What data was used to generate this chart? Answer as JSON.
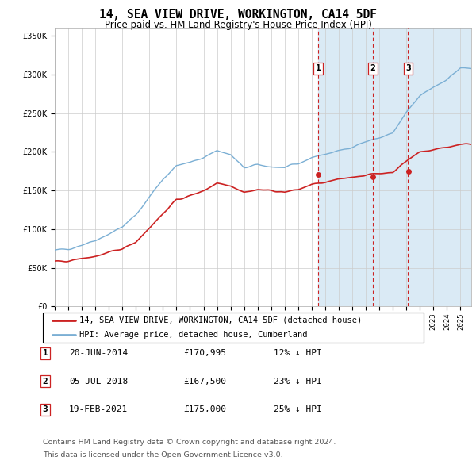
{
  "title": "14, SEA VIEW DRIVE, WORKINGTON, CA14 5DF",
  "subtitle": "Price paid vs. HM Land Registry's House Price Index (HPI)",
  "ylim": [
    0,
    360000
  ],
  "xlim_start": 1995.0,
  "xlim_end": 2025.8,
  "legend_label_red": "14, SEA VIEW DRIVE, WORKINGTON, CA14 5DF (detached house)",
  "legend_label_blue": "HPI: Average price, detached house, Cumberland",
  "footnote_line1": "Contains HM Land Registry data © Crown copyright and database right 2024.",
  "footnote_line2": "This data is licensed under the Open Government Licence v3.0.",
  "sale_points": [
    {
      "label": "1",
      "date_str": "20-JUN-2014",
      "price": 170995,
      "price_str": "£170,995",
      "pct_str": "12% ↓ HPI",
      "x": 2014.47
    },
    {
      "label": "2",
      "date_str": "05-JUL-2018",
      "price": 167500,
      "price_str": "£167,500",
      "pct_str": "23% ↓ HPI",
      "x": 2018.51
    },
    {
      "label": "3",
      "date_str": "19-FEB-2021",
      "price": 175000,
      "price_str": "£175,000",
      "pct_str": "25% ↓ HPI",
      "x": 2021.13
    }
  ],
  "hpi_color": "#7bafd4",
  "price_color": "#cc2222",
  "vline_color": "#cc2222",
  "shade_color": "#daeaf5",
  "background_color": "#ffffff",
  "grid_color": "#cccccc",
  "hpi_anchors_x": [
    1995,
    1996,
    1997,
    1998,
    1999,
    2000,
    2001,
    2002,
    2003,
    2004,
    2005,
    2006,
    2007,
    2008,
    2009,
    2010,
    2011,
    2012,
    2013,
    2014,
    2015,
    2016,
    2017,
    2018,
    2019,
    2020,
    2021,
    2022,
    2023,
    2024,
    2025
  ],
  "hpi_anchors_y": [
    72000,
    75000,
    80000,
    86000,
    94000,
    103000,
    118000,
    142000,
    165000,
    182000,
    186000,
    193000,
    202000,
    196000,
    179000,
    183000,
    181000,
    179000,
    184000,
    193000,
    197000,
    201000,
    207000,
    213000,
    218000,
    224000,
    250000,
    272000,
    284000,
    294000,
    308000
  ],
  "price_anchors_x": [
    1995,
    1996,
    1997,
    1998,
    1999,
    2000,
    2001,
    2002,
    2003,
    2004,
    2005,
    2006,
    2007,
    2008,
    2009,
    2010,
    2011,
    2012,
    2013,
    2014,
    2015,
    2016,
    2017,
    2018,
    2019,
    2020,
    2021,
    2022,
    2023,
    2024,
    2025
  ],
  "price_anchors_y": [
    57000,
    59000,
    62000,
    65000,
    69000,
    75000,
    84000,
    102000,
    120000,
    138000,
    143000,
    150000,
    160000,
    157000,
    148000,
    151000,
    150000,
    148000,
    151000,
    158000,
    160000,
    164000,
    168000,
    170000,
    172000,
    174000,
    188000,
    200000,
    203000,
    206000,
    210000
  ],
  "noise_seed": 42,
  "noise_hpi_std": 2500,
  "noise_price_std": 2000,
  "noise_sigma": 3
}
